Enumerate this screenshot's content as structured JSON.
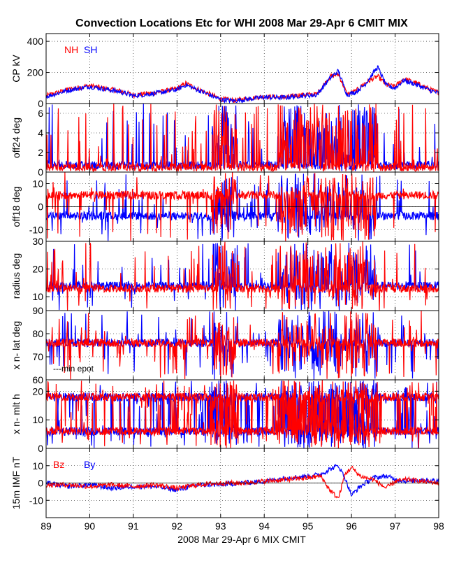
{
  "chart_data": {
    "type": "line",
    "title": "Convection Locations Etc for WHI 2008 Mar 29-Apr 6 CMIT MIX",
    "xlabel": "2008 Mar 29-Apr 6 MIX CMIT",
    "x_range": [
      89,
      98
    ],
    "x_ticks": [
      "89",
      "90",
      "91",
      "92",
      "93",
      "94",
      "95",
      "96",
      "97",
      "98"
    ],
    "panels": [
      {
        "name": "cp",
        "ylabel": "CP kV",
        "ylim": [
          0,
          450
        ],
        "y_ticks": [
          "0",
          "200",
          "400"
        ],
        "legend": [
          {
            "label": "NH",
            "color": "#ff0000"
          },
          {
            "label": "SH",
            "color": "#0000ff"
          }
        ],
        "series": [
          {
            "name": "NH",
            "color": "#ff0000",
            "x": [
              89,
              89.5,
              90,
              90.3,
              90.7,
              91,
              91.5,
              92,
              92.2,
              92.5,
              93,
              93.3,
              93.7,
              94,
              94.5,
              94.8,
              95.2,
              95.5,
              95.7,
              95.9,
              96.1,
              96.3,
              96.6,
              96.8,
              97,
              97.2,
              97.5,
              97.8,
              98
            ],
            "values": [
              50,
              90,
              115,
              100,
              80,
              55,
              70,
              95,
              130,
              90,
              30,
              20,
              35,
              45,
              40,
              55,
              60,
              170,
              190,
              60,
              80,
              130,
              175,
              120,
              110,
              160,
              130,
              90,
              70
            ]
          },
          {
            "name": "SH",
            "color": "#0000ff",
            "x": [
              89,
              89.5,
              90,
              90.3,
              90.7,
              91,
              91.5,
              92,
              92.2,
              92.5,
              93,
              93.3,
              93.7,
              94,
              94.5,
              94.8,
              95.2,
              95.5,
              95.7,
              95.9,
              96.1,
              96.3,
              96.6,
              96.8,
              97,
              97.2,
              97.5,
              97.8,
              98
            ],
            "values": [
              45,
              85,
              110,
              95,
              75,
              50,
              65,
              90,
              120,
              85,
              25,
              18,
              30,
              40,
              38,
              50,
              55,
              160,
              210,
              55,
              75,
              120,
              235,
              115,
              100,
              150,
              120,
              85,
              65
            ]
          }
        ]
      },
      {
        "name": "off24",
        "ylabel": "off24 deg",
        "ylim": [
          0,
          7
        ],
        "y_ticks": [
          "0",
          "2",
          "4",
          "6"
        ],
        "series": [
          {
            "name": "SH",
            "color": "#0000ff",
            "range": [
              0,
              7
            ],
            "base": 0.7
          },
          {
            "name": "NH",
            "color": "#ff0000",
            "range": [
              0,
              7
            ],
            "base": 0.5
          }
        ]
      },
      {
        "name": "off18",
        "ylabel": "off18 deg",
        "ylim": [
          -15,
          15
        ],
        "y_ticks": [
          "-10",
          "0",
          "10"
        ],
        "series": [
          {
            "name": "SH",
            "color": "#0000ff",
            "range": [
              -15,
              15
            ],
            "base": -4
          },
          {
            "name": "NH",
            "color": "#ff0000",
            "range": [
              -15,
              15
            ],
            "base": 5
          }
        ]
      },
      {
        "name": "radius",
        "ylabel": "radius deg",
        "ylim": [
          5,
          30
        ],
        "y_ticks": [
          "10",
          "20",
          "30"
        ],
        "series": [
          {
            "name": "SH",
            "color": "#0000ff",
            "range": [
              5,
              30
            ],
            "base": 14
          },
          {
            "name": "NH",
            "color": "#ff0000",
            "range": [
              5,
              30
            ],
            "base": 13
          }
        ]
      },
      {
        "name": "lat",
        "ylabel": "x n- lat deg",
        "ylim": [
          60,
          90
        ],
        "y_ticks": [
          "60",
          "70",
          "80",
          "90"
        ],
        "annotation": "---min epot",
        "series": [
          {
            "name": "SH",
            "color": "#0000ff",
            "range": [
              60,
              90
            ],
            "base": 76
          },
          {
            "name": "NH",
            "color": "#ff0000",
            "range": [
              60,
              90
            ],
            "base": 76
          }
        ]
      },
      {
        "name": "mlt",
        "ylabel": "x n- mlt h",
        "ylim": [
          0,
          24
        ],
        "y_ticks": [
          "0",
          "10",
          "20"
        ],
        "series": [
          {
            "name": "SH upper",
            "color": "#0000ff",
            "range": [
              0,
              24
            ],
            "base": 18
          },
          {
            "name": "SH lower",
            "color": "#0000ff",
            "range": [
              0,
              24
            ],
            "base": 6
          },
          {
            "name": "NH upper",
            "color": "#ff0000",
            "range": [
              0,
              24
            ],
            "base": 18
          },
          {
            "name": "NH lower",
            "color": "#ff0000",
            "range": [
              0,
              24
            ],
            "base": 6
          }
        ]
      },
      {
        "name": "imf",
        "ylabel": "15m IMF nT",
        "ylim": [
          -20,
          20
        ],
        "y_ticks": [
          "-10",
          "0",
          "10"
        ],
        "legend": [
          {
            "label": "Bz",
            "color": "#ff0000"
          },
          {
            "label": "By",
            "color": "#0000ff"
          }
        ],
        "series": [
          {
            "name": "By",
            "color": "#0000ff",
            "x": [
              89,
              89.5,
              90,
              90.5,
              91,
              91.5,
              92,
              92.5,
              93,
              93.5,
              94,
              94.5,
              95,
              95.3,
              95.5,
              95.7,
              95.85,
              96,
              96.2,
              96.5,
              96.8,
              97,
              97.3,
              97.6,
              98
            ],
            "values": [
              0,
              -2,
              -1,
              -3,
              -2,
              -2,
              -4,
              -1,
              -1,
              0,
              1,
              3,
              4,
              5,
              8,
              10,
              3,
              -7,
              -2,
              3,
              4,
              2,
              1,
              2,
              1
            ]
          },
          {
            "name": "Bz",
            "color": "#ff0000",
            "x": [
              89,
              89.5,
              90,
              90.5,
              91,
              91.5,
              92,
              92.5,
              93,
              93.5,
              94,
              94.5,
              95,
              95.3,
              95.5,
              95.7,
              95.85,
              96,
              96.2,
              96.5,
              96.8,
              97,
              97.3,
              97.6,
              98
            ],
            "values": [
              -1,
              -1,
              -2,
              -1,
              -2,
              -1,
              -3,
              -1,
              0,
              0,
              1,
              2,
              3,
              4,
              -4,
              -9,
              5,
              9,
              4,
              2,
              -3,
              1,
              2,
              1,
              0
            ]
          }
        ]
      }
    ]
  }
}
